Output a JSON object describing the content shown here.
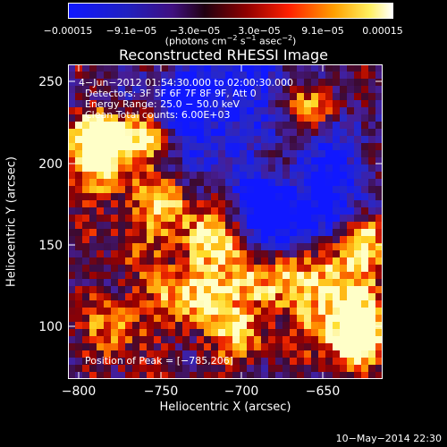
{
  "colorbar": {
    "ticks": [
      "−0.00015",
      "−9.1e−05",
      "−3.0e−05",
      "3.0e−05",
      "9.1e−05",
      "0.00015"
    ],
    "unit_prefix": "(photons cm",
    "unit_exp1": "−2",
    "unit_mid": " s",
    "unit_exp2": "−1",
    "unit_mid2": " asec",
    "unit_exp3": "−2",
    "unit_suffix": ")"
  },
  "title": "Reconstructed RHESSI Image",
  "overlay": {
    "time": "4−Jun−2012 01:54:30.000 to 02:00:30.000",
    "detectors": "Detectors: 3F 5F 6F 7F 8F 9F, Att 0",
    "energy": "Energy Range: 25.0 − 50.0 keV",
    "algorithm": "Clean     Total counts: 6.00E+03",
    "peak": "Position of Peak = [−785,206]"
  },
  "axes": {
    "xlabel": "Heliocentric X (arcsec)",
    "ylabel": "Heliocentric Y (arcsec)",
    "xticks": [
      "−800",
      "−750",
      "−700",
      "−650"
    ],
    "yticks": [
      "250",
      "200",
      "150",
      "100"
    ]
  },
  "footer_date": "10−May−2014 22:30"
}
